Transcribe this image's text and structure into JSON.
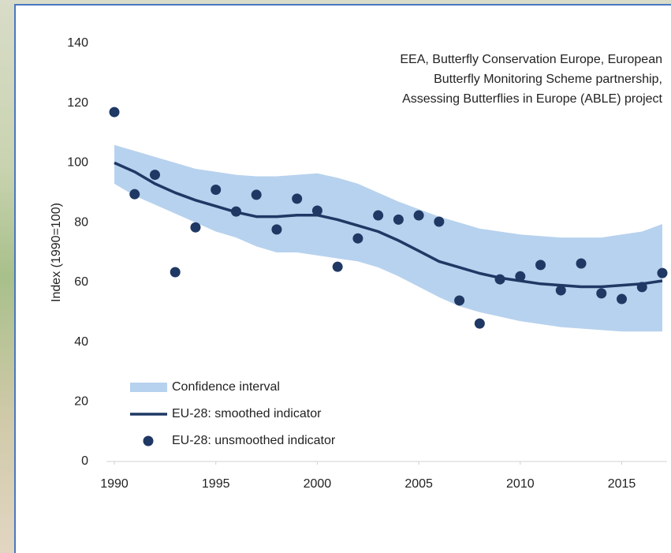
{
  "chart_data": {
    "type": "line",
    "y_label": "Index (1990=100)",
    "annotation": [
      "EEA, Butterfly Conservation Europe, European",
      "Butterfly Monitoring Scheme partnership,",
      "Assessing Butterflies in Europe (ABLE) project"
    ],
    "x": [
      1990,
      1991,
      1992,
      1993,
      1994,
      1995,
      1996,
      1997,
      1998,
      1999,
      2000,
      2001,
      2002,
      2003,
      2004,
      2005,
      2006,
      2007,
      2008,
      2009,
      2010,
      2011,
      2012,
      2013,
      2014,
      2015,
      2016,
      2017
    ],
    "xlim": [
      1990,
      2017
    ],
    "xticks": [
      1990,
      1995,
      2000,
      2005,
      2010,
      2015
    ],
    "ylim": [
      0,
      140
    ],
    "yticks": [
      0,
      20,
      40,
      60,
      80,
      100,
      120,
      140
    ],
    "grid": false,
    "legend": "lower-left",
    "series": [
      {
        "name": "Confidence interval",
        "kind": "band",
        "color": "#b7d2ee",
        "upper": [
          106,
          104,
          102,
          100,
          98,
          97,
          96,
          95.5,
          95.5,
          96,
          96.5,
          95,
          93,
          90,
          87,
          84.5,
          82,
          80,
          78,
          77,
          76,
          75.5,
          75,
          75,
          75,
          76,
          77,
          79.5
        ],
        "lower": [
          93,
          89,
          86,
          83,
          80,
          77,
          75,
          72,
          70,
          70,
          69,
          68,
          67,
          65,
          62,
          58.5,
          55,
          52,
          50,
          48.5,
          47,
          46,
          45,
          44.5,
          44,
          43.5,
          43.5,
          43.5
        ]
      },
      {
        "name": "EU-28: smoothed indicator",
        "kind": "line",
        "color": "#1f3864",
        "values": [
          100,
          97,
          93,
          90,
          87.5,
          85.5,
          83.5,
          82,
          82,
          82.5,
          82.5,
          81,
          79,
          77,
          74,
          70.5,
          67,
          65,
          63,
          61.5,
          60.5,
          59.5,
          59,
          58.5,
          58.5,
          59,
          59.5,
          60.5
        ]
      },
      {
        "name": "EU-28: unsmoothed indicator",
        "kind": "scatter",
        "color": "#1f3864",
        "values": [
          117,
          89.5,
          96,
          63.4,
          78.4,
          91,
          83.7,
          89.3,
          77.7,
          88,
          84,
          65.2,
          74.7,
          82.4,
          81,
          82.4,
          80.3,
          53.9,
          46.2,
          61,
          62,
          65.8,
          57.3,
          66.3,
          56.3,
          54.4,
          58.4,
          63.1
        ]
      }
    ]
  }
}
